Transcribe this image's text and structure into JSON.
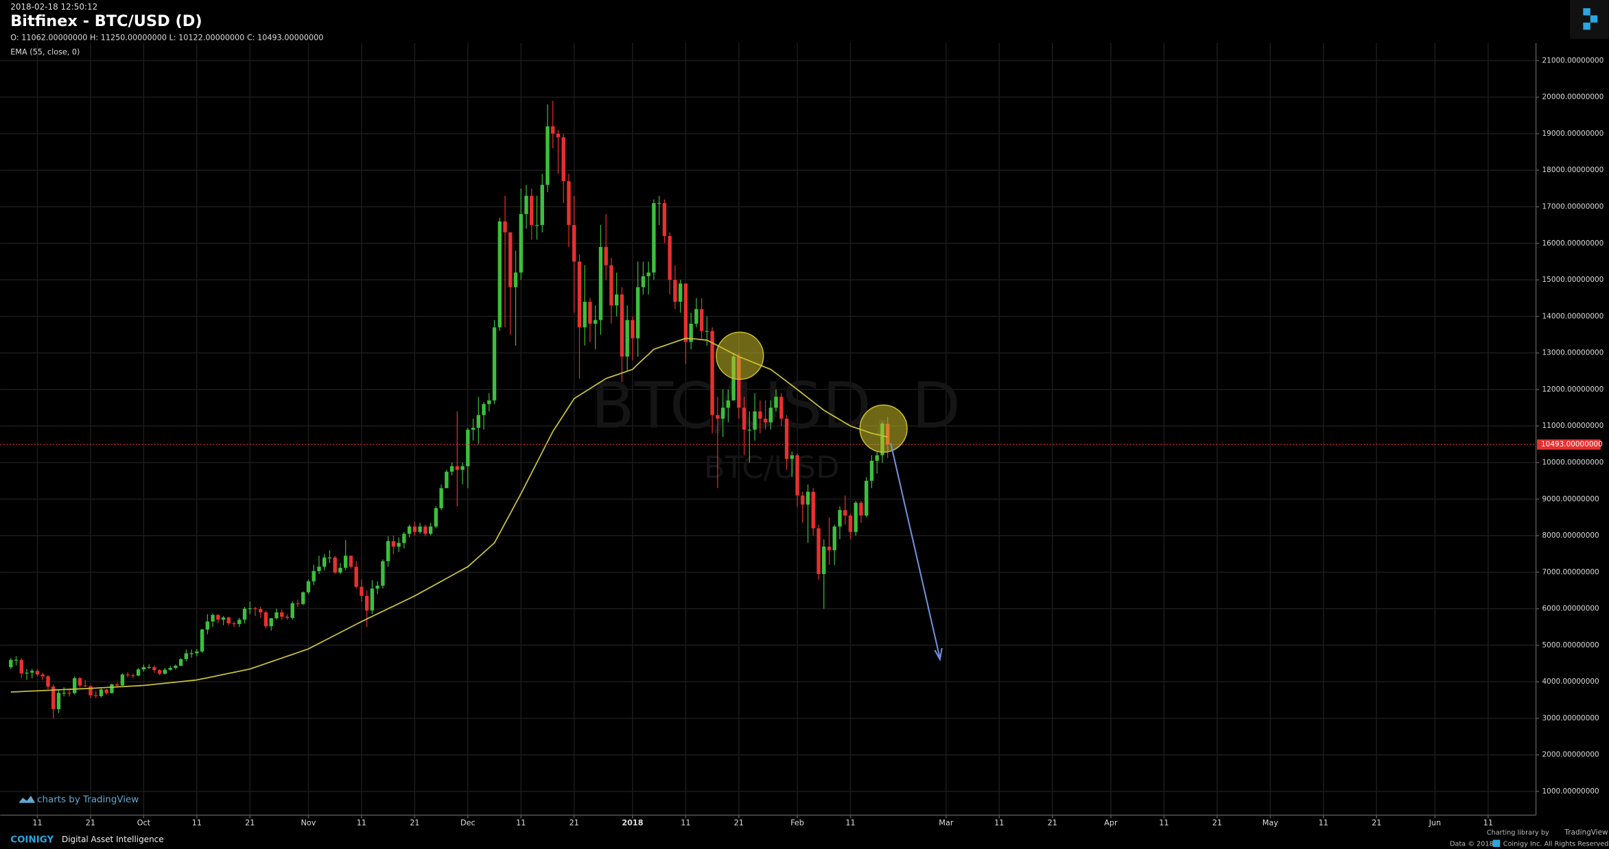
{
  "chart_data": {
    "type": "candlestick",
    "timestamp": "2018-02-18 12:50:12",
    "title": "Bitfinex - BTC/USD (D)",
    "ohlc_legend": [
      {
        "key": "O:",
        "value": "11062.00000000"
      },
      {
        "key": "H:",
        "value": "11250.00000000"
      },
      {
        "key": "L:",
        "value": "10122.00000000"
      },
      {
        "key": "C:",
        "value": "10493.00000000"
      }
    ],
    "watermark": [
      "BTC/USD, D",
      "BTC/USD"
    ],
    "up_color": "#3cc03c",
    "down_color": "#e8302f",
    "x": [
      "2017-09-06",
      "2017-09-07",
      "2017-09-08",
      "2017-09-09",
      "2017-09-10",
      "2017-09-11",
      "2017-09-12",
      "2017-09-13",
      "2017-09-14",
      "2017-09-15",
      "2017-09-16",
      "2017-09-17",
      "2017-09-18",
      "2017-09-19",
      "2017-09-20",
      "2017-09-21",
      "2017-09-22",
      "2017-09-23",
      "2017-09-24",
      "2017-09-25",
      "2017-09-26",
      "2017-09-27",
      "2017-09-28",
      "2017-09-29",
      "2017-09-30",
      "2017-10-01",
      "2017-10-02",
      "2017-10-03",
      "2017-10-04",
      "2017-10-05",
      "2017-10-06",
      "2017-10-07",
      "2017-10-08",
      "2017-10-09",
      "2017-10-10",
      "2017-10-11",
      "2017-10-12",
      "2017-10-13",
      "2017-10-14",
      "2017-10-15",
      "2017-10-16",
      "2017-10-17",
      "2017-10-18",
      "2017-10-19",
      "2017-10-20",
      "2017-10-21",
      "2017-10-22",
      "2017-10-23",
      "2017-10-24",
      "2017-10-25",
      "2017-10-26",
      "2017-10-27",
      "2017-10-28",
      "2017-10-29",
      "2017-10-30",
      "2017-10-31",
      "2017-11-01",
      "2017-11-02",
      "2017-11-03",
      "2017-11-04",
      "2017-11-05",
      "2017-11-06",
      "2017-11-07",
      "2017-11-08",
      "2017-11-09",
      "2017-11-10",
      "2017-11-11",
      "2017-11-12",
      "2017-11-13",
      "2017-11-14",
      "2017-11-15",
      "2017-11-16",
      "2017-11-17",
      "2017-11-18",
      "2017-11-19",
      "2017-11-20",
      "2017-11-21",
      "2017-11-22",
      "2017-11-23",
      "2017-11-24",
      "2017-11-25",
      "2017-11-26",
      "2017-11-27",
      "2017-11-28",
      "2017-11-29",
      "2017-11-30",
      "2017-12-01",
      "2017-12-02",
      "2017-12-03",
      "2017-12-04",
      "2017-12-05",
      "2017-12-06",
      "2017-12-07",
      "2017-12-08",
      "2017-12-09",
      "2017-12-10",
      "2017-12-11",
      "2017-12-12",
      "2017-12-13",
      "2017-12-14",
      "2017-12-15",
      "2017-12-16",
      "2017-12-17",
      "2017-12-18",
      "2017-12-19",
      "2017-12-20",
      "2017-12-21",
      "2017-12-22",
      "2017-12-23",
      "2017-12-24",
      "2017-12-25",
      "2017-12-26",
      "2017-12-27",
      "2017-12-28",
      "2017-12-29",
      "2017-12-30",
      "2017-12-31",
      "2018-01-01",
      "2018-01-02",
      "2018-01-03",
      "2018-01-04",
      "2018-01-05",
      "2018-01-06",
      "2018-01-07",
      "2018-01-08",
      "2018-01-09",
      "2018-01-10",
      "2018-01-11",
      "2018-01-12",
      "2018-01-13",
      "2018-01-14",
      "2018-01-15",
      "2018-01-16",
      "2018-01-17",
      "2018-01-18",
      "2018-01-19",
      "2018-01-20",
      "2018-01-21",
      "2018-01-22",
      "2018-01-23",
      "2018-01-24",
      "2018-01-25",
      "2018-01-26",
      "2018-01-27",
      "2018-01-28",
      "2018-01-29",
      "2018-01-30",
      "2018-01-31",
      "2018-02-01",
      "2018-02-02",
      "2018-02-03",
      "2018-02-04",
      "2018-02-05",
      "2018-02-06",
      "2018-02-07",
      "2018-02-08",
      "2018-02-09",
      "2018-02-10",
      "2018-02-11",
      "2018-02-12",
      "2018-02-13",
      "2018-02-14",
      "2018-02-15",
      "2018-02-16",
      "2018-02-17",
      "2018-02-18"
    ],
    "open": [
      4400,
      4600,
      4600,
      4230,
      4250,
      4300,
      4200,
      4150,
      3870,
      3250,
      3700,
      3700,
      3690,
      4100,
      3900,
      3880,
      3630,
      3610,
      3790,
      3690,
      3930,
      3900,
      4200,
      4180,
      4170,
      4340,
      4400,
      4400,
      4320,
      4220,
      4330,
      4380,
      4440,
      4620,
      4780,
      4780,
      4830,
      5430,
      5650,
      5830,
      5700,
      5760,
      5600,
      5580,
      5700,
      6000,
      6010,
      5990,
      5900,
      5520,
      5740,
      5900,
      5780,
      5750,
      6150,
      6130,
      6450,
      6750,
      7030,
      7150,
      7400,
      7400,
      6990,
      7120,
      7450,
      7150,
      6600,
      6350,
      5950,
      6550,
      6630,
      7300,
      7850,
      7700,
      7800,
      8050,
      8250,
      8100,
      8250,
      8050,
      8250,
      8750,
      9300,
      9750,
      9900,
      9800,
      9900,
      10900,
      10950,
      11300,
      11600,
      11700,
      13700,
      16600,
      16300,
      14800,
      15200,
      16800,
      17300,
      16500,
      16500,
      17600,
      19200,
      19000,
      18900,
      17700,
      16500,
      15500,
      13700,
      14400,
      13800,
      13900,
      15900,
      15400,
      14300,
      14600,
      12900,
      13900,
      13400,
      14800,
      15100,
      15200,
      17100,
      17100,
      16200,
      15000,
      14400,
      14900,
      13300,
      13800,
      14200,
      13600,
      13600,
      11300,
      11200,
      11500,
      11700,
      12900,
      11500,
      10900,
      10900,
      11400,
      11200,
      11100,
      11500,
      11800,
      11200,
      10100,
      10200,
      9100,
      8850,
      9200,
      8200,
      6950,
      7700,
      7600,
      8250,
      8700,
      8550,
      8100,
      8900,
      8550,
      9500,
      10050,
      10200,
      11062
    ],
    "high": [
      4650,
      4700,
      4650,
      4350,
      4350,
      4350,
      4250,
      4180,
      3920,
      3800,
      3850,
      3800,
      4150,
      4130,
      4050,
      3900,
      3750,
      3820,
      3800,
      3950,
      3980,
      4230,
      4260,
      4220,
      4380,
      4470,
      4480,
      4450,
      4350,
      4380,
      4440,
      4470,
      4650,
      4880,
      4880,
      4900,
      5450,
      5850,
      5870,
      5850,
      5800,
      5780,
      5650,
      5750,
      6050,
      6200,
      6050,
      6050,
      5950,
      5750,
      6000,
      5980,
      5850,
      6200,
      6250,
      6470,
      6800,
      7200,
      7450,
      7500,
      7600,
      7450,
      7250,
      7880,
      7450,
      7300,
      6800,
      6500,
      6780,
      6750,
      7350,
      7980,
      8000,
      7950,
      8100,
      8300,
      8380,
      8350,
      8300,
      8350,
      8800,
      9400,
      9800,
      10000,
      11400,
      10000,
      10950,
      11200,
      11800,
      11650,
      11900,
      13900,
      16700,
      17300,
      16300,
      15800,
      17500,
      17600,
      17500,
      17300,
      17900,
      19800,
      19900,
      19100,
      19000,
      17900,
      17300,
      15700,
      15400,
      14500,
      14300,
      16500,
      16800,
      15600,
      15200,
      14800,
      14300,
      14000,
      15500,
      15500,
      15500,
      17200,
      17300,
      17200,
      16300,
      15400,
      15000,
      14900,
      14100,
      14500,
      14500,
      14000,
      13700,
      11800,
      12000,
      12000,
      13000,
      13000,
      11800,
      11400,
      11900,
      11700,
      11700,
      11700,
      12000,
      11900,
      11300,
      10300,
      10250,
      9200,
      9400,
      9300,
      8300,
      7900,
      8500,
      8300,
      8800,
      9100,
      8600,
      8950,
      8950,
      9600,
      10200,
      10300,
      11100,
      11250
    ],
    "low": [
      4350,
      4450,
      4100,
      4050,
      4100,
      4150,
      4050,
      3800,
      3000,
      3150,
      3600,
      3600,
      3650,
      3850,
      3850,
      3550,
      3550,
      3570,
      3650,
      3680,
      3880,
      3890,
      4120,
      4100,
      4150,
      4280,
      4350,
      4250,
      4180,
      4200,
      4300,
      4340,
      4420,
      4560,
      4660,
      4700,
      4790,
      5300,
      5500,
      5600,
      5550,
      5550,
      5500,
      5500,
      5600,
      5850,
      5800,
      5750,
      5450,
      5400,
      5700,
      5700,
      5700,
      5700,
      6050,
      6100,
      6400,
      6650,
      6950,
      7050,
      7250,
      6950,
      6950,
      7050,
      7100,
      6550,
      6200,
      5500,
      5850,
      6400,
      6550,
      7150,
      7500,
      7550,
      7650,
      7950,
      8000,
      8050,
      7980,
      8000,
      8200,
      8700,
      9300,
      9650,
      8800,
      9400,
      9300,
      10600,
      10500,
      10900,
      11400,
      11600,
      13600,
      13700,
      13500,
      13200,
      15000,
      16400,
      16100,
      16100,
      16300,
      17400,
      18600,
      17900,
      17100,
      15900,
      14100,
      12300,
      13200,
      13300,
      13100,
      13500,
      15000,
      13800,
      14000,
      12200,
      12500,
      12800,
      12900,
      14600,
      14600,
      15000,
      16500,
      16000,
      14600,
      14200,
      14100,
      12700,
      13100,
      13700,
      13400,
      13200,
      10800,
      9300,
      10700,
      11100,
      11700,
      11200,
      10200,
      10000,
      10600,
      10800,
      10900,
      10900,
      11400,
      11000,
      9800,
      9600,
      8800,
      8350,
      7800,
      8000,
      6800,
      6000,
      7200,
      7200,
      7900,
      8300,
      7900,
      8000,
      8350,
      8500,
      9300,
      9700,
      10000,
      10122
    ],
    "close": [
      4600,
      4600,
      4230,
      4250,
      4300,
      4200,
      4150,
      3870,
      3250,
      3700,
      3700,
      3690,
      4100,
      3900,
      3880,
      3630,
      3610,
      3790,
      3690,
      3930,
      3900,
      4200,
      4180,
      4170,
      4340,
      4400,
      4400,
      4320,
      4220,
      4330,
      4380,
      4440,
      4620,
      4780,
      4780,
      4830,
      5430,
      5650,
      5830,
      5700,
      5760,
      5600,
      5580,
      5700,
      6000,
      6010,
      5990,
      5900,
      5520,
      5740,
      5900,
      5780,
      5750,
      6150,
      6130,
      6450,
      6750,
      7030,
      7150,
      7400,
      7400,
      6990,
      7120,
      7450,
      7150,
      6600,
      6350,
      5950,
      6550,
      6630,
      7300,
      7850,
      7700,
      7800,
      8050,
      8250,
      8100,
      8250,
      8050,
      8250,
      8750,
      9300,
      9750,
      9900,
      9800,
      9900,
      10900,
      10950,
      11300,
      11600,
      11700,
      13700,
      16600,
      16300,
      14800,
      15200,
      16800,
      17300,
      16500,
      16500,
      17600,
      19200,
      19000,
      18900,
      17700,
      16500,
      15500,
      13700,
      14400,
      13800,
      13900,
      15900,
      15400,
      14300,
      14600,
      12900,
      13900,
      13400,
      14800,
      15100,
      15200,
      17100,
      17100,
      16200,
      15000,
      14400,
      14900,
      13300,
      13800,
      14200,
      13600,
      13600,
      11300,
      11200,
      11500,
      11700,
      12900,
      11500,
      10900,
      10900,
      11400,
      11200,
      11100,
      11500,
      11800,
      11200,
      10100,
      10200,
      9100,
      8850,
      9200,
      8200,
      6950,
      7700,
      7600,
      8250,
      8700,
      8550,
      8100,
      8900,
      8550,
      9500,
      10050,
      10200,
      11062,
      10493
    ],
    "series": [
      {
        "name": "EMA (55, close, 0)",
        "color": "#c8c038",
        "values": [
          3720,
          3727,
          3733,
          3740,
          3747,
          3753,
          3760,
          3767,
          3773,
          3780,
          3787,
          3793,
          3800,
          3807,
          3813,
          3820,
          3828,
          3836,
          3844,
          3852,
          3860,
          3868,
          3876,
          3884,
          3892,
          3900,
          3915,
          3930,
          3945,
          3960,
          3975,
          3990,
          4005,
          4020,
          4035,
          4050,
          4080,
          4110,
          4140,
          4170,
          4200,
          4230,
          4260,
          4290,
          4320,
          4350,
          4400,
          4450,
          4500,
          4550,
          4600,
          4650,
          4700,
          4750,
          4800,
          4850,
          4900,
          4975,
          5050,
          5125,
          5200,
          5275,
          5350,
          5425,
          5500,
          5575,
          5650,
          5720,
          5790,
          5860,
          5930,
          6000,
          6070,
          6140,
          6210,
          6280,
          6350,
          6430,
          6510,
          6590,
          6670,
          6750,
          6830,
          6910,
          6990,
          7070,
          7150,
          7280,
          7410,
          7540,
          7670,
          7800,
          8070,
          8340,
          8610,
          8880,
          9150,
          9433,
          9717,
          10000,
          10283,
          10567,
          10850,
          11075,
          11300,
          11525,
          11750,
          11842,
          11933,
          12025,
          12117,
          12208,
          12300,
          12350,
          12400,
          12450,
          12500,
          12550,
          12690,
          12830,
          12960,
          13100,
          13150,
          13200,
          13250,
          13300,
          13350,
          13400,
          13390,
          13380,
          13365,
          13350,
          13275,
          13200,
          13125,
          13050,
          12975,
          12900,
          12842,
          12783,
          12725,
          12667,
          12608,
          12550,
          12440,
          12330,
          12220,
          12110,
          12000,
          11886,
          11772,
          11658,
          11544,
          11430,
          11344,
          11258,
          11172,
          11086,
          11000,
          10950,
          10900,
          10850,
          10800,
          10767,
          10733,
          10700
        ]
      }
    ],
    "last_price": {
      "value": 10493,
      "label": "10493.00000000"
    },
    "xlim": [
      "2017-09-04",
      "2018-06-20"
    ],
    "xticks": [
      {
        "value": "2017-09-11",
        "label": "11"
      },
      {
        "value": "2017-09-21",
        "label": "21"
      },
      {
        "value": "2017-10-01",
        "label": "Oct"
      },
      {
        "value": "2017-10-11",
        "label": "11"
      },
      {
        "value": "2017-10-21",
        "label": "21"
      },
      {
        "value": "2017-11-01",
        "label": "Nov"
      },
      {
        "value": "2017-11-11",
        "label": "11"
      },
      {
        "value": "2017-11-21",
        "label": "21"
      },
      {
        "value": "2017-12-01",
        "label": "Dec"
      },
      {
        "value": "2017-12-11",
        "label": "11"
      },
      {
        "value": "2017-12-21",
        "label": "21"
      },
      {
        "value": "2018-01-01",
        "label": "2018"
      },
      {
        "value": "2018-01-11",
        "label": "11"
      },
      {
        "value": "2018-01-21",
        "label": "21"
      },
      {
        "value": "2018-02-01",
        "label": "Feb"
      },
      {
        "value": "2018-02-11",
        "label": "11"
      },
      {
        "value": "2018-03-01",
        "label": "Mar"
      },
      {
        "value": "2018-03-11",
        "label": "11"
      },
      {
        "value": "2018-03-21",
        "label": "21"
      },
      {
        "value": "2018-04-01",
        "label": "Apr"
      },
      {
        "value": "2018-04-11",
        "label": "11"
      },
      {
        "value": "2018-04-21",
        "label": "21"
      },
      {
        "value": "2018-05-01",
        "label": "May"
      },
      {
        "value": "2018-05-11",
        "label": "11"
      },
      {
        "value": "2018-05-21",
        "label": "21"
      },
      {
        "value": "2018-06-01",
        "label": "Jun"
      },
      {
        "value": "2018-06-11",
        "label": "11"
      }
    ],
    "ylim": [
      350,
      21480
    ],
    "yticks": [
      {
        "value": 1000,
        "label": "1000.00000000"
      },
      {
        "value": 2000,
        "label": "2000.00000000"
      },
      {
        "value": 3000,
        "label": "3000.00000000"
      },
      {
        "value": 4000,
        "label": "4000.00000000"
      },
      {
        "value": 5000,
        "label": "5000.00000000"
      },
      {
        "value": 6000,
        "label": "6000.00000000"
      },
      {
        "value": 7000,
        "label": "7000.00000000"
      },
      {
        "value": 8000,
        "label": "8000.00000000"
      },
      {
        "value": 9000,
        "label": "9000.00000000"
      },
      {
        "value": 10000,
        "label": "10000.00000000"
      },
      {
        "value": 11000,
        "label": "11000.00000000"
      },
      {
        "value": 12000,
        "label": "12000.00000000"
      },
      {
        "value": 13000,
        "label": "13000.00000000"
      },
      {
        "value": 14000,
        "label": "14000.00000000"
      },
      {
        "value": 15000,
        "label": "15000.00000000"
      },
      {
        "value": 16000,
        "label": "16000.00000000"
      },
      {
        "value": 17000,
        "label": "17000.00000000"
      },
      {
        "value": 18000,
        "label": "18000.00000000"
      },
      {
        "value": 19000,
        "label": "19000.00000000"
      },
      {
        "value": 20000,
        "label": "20000.00000000"
      },
      {
        "value": 21000,
        "label": "21000.00000000"
      }
    ],
    "grid": true
  },
  "footer": {
    "charts_by": "charts by TradingView",
    "brand": "COINIGY",
    "tagline": "Digital Asset Intelligence",
    "charting_library": "Charting library by",
    "library_name": "TradingView",
    "data_copyright": "Data © 2018",
    "rights": "Coinigy Inc. All Rights Reserved."
  }
}
